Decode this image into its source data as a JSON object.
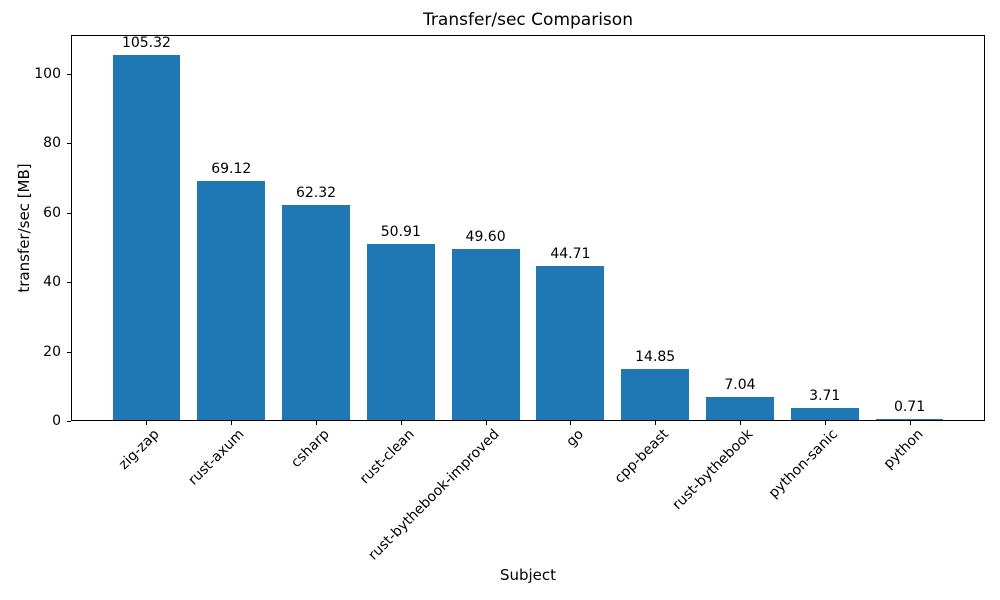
{
  "chart_data": {
    "type": "bar",
    "title": "Transfer/sec Comparison",
    "xlabel": "Subject",
    "ylabel": "transfer/sec [MB]",
    "categories": [
      "zig-zap",
      "rust-axum",
      "csharp",
      "rust-clean",
      "rust-bythebook-improved",
      "go",
      "cpp-beast",
      "rust-bythebook",
      "python-sanic",
      "python"
    ],
    "values": [
      105.32,
      69.12,
      62.32,
      50.91,
      49.6,
      44.71,
      14.85,
      7.04,
      3.71,
      0.71
    ],
    "value_labels": [
      "105.32",
      "69.12",
      "62.32",
      "50.91",
      "49.60",
      "44.71",
      "14.85",
      "7.04",
      "3.71",
      "0.71"
    ],
    "yticks": [
      0,
      20,
      40,
      60,
      80,
      100
    ],
    "ylim": [
      0,
      111.2
    ],
    "xtick_rotation_deg": 45,
    "grid": false,
    "legend": null,
    "bar_color": "#1f77b4",
    "text_color": "#000000",
    "background_color": "#ffffff"
  }
}
